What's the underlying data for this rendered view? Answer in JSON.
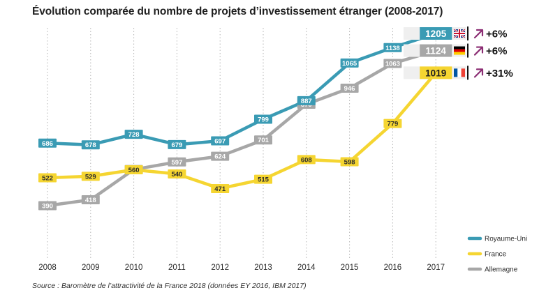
{
  "title": "Évolution comparée du nombre de projets d’investissement étranger (2008-2017)",
  "source": "Source : Baromètre de l’attractivité de la France 2018 (données EY 2016, IBM 2017)",
  "colors": {
    "royaume_uni": "#3a9bb4",
    "france": "#f5d531",
    "allemagne": "#a7a7a7",
    "arrow": "#8b2d73",
    "grid": "#b5b5b5"
  },
  "chart_data": {
    "type": "line",
    "title": "Évolution comparée du nombre de projets d’investissement étranger (2008-2017)",
    "x": [
      "2008",
      "2009",
      "2010",
      "2011",
      "2012",
      "2013",
      "2014",
      "2015",
      "2016",
      "2017"
    ],
    "series": [
      {
        "name": "Royaume-Uni",
        "color": "#3a9bb4",
        "values": [
          686,
          678,
          728,
          679,
          697,
          799,
          887,
          1065,
          1138,
          1205
        ],
        "change": "+6%",
        "flag": "uk-flag-icon"
      },
      {
        "name": "France",
        "color": "#f5d531",
        "values": [
          522,
          529,
          560,
          540,
          471,
          515,
          608,
          598,
          779,
          1019
        ],
        "change": "+31%",
        "flag": "france-flag-icon"
      },
      {
        "name": "Allemagne",
        "color": "#a7a7a7",
        "values": [
          390,
          418,
          561,
          597,
          624,
          701,
          870,
          946,
          1063,
          1124
        ],
        "change": "+6%",
        "flag": "germany-flag-icon"
      }
    ],
    "ylim": [
      300,
      1230
    ],
    "grid": "vertical dotted",
    "legend": "bottom-right",
    "change_arrow": "up-right-arrow-icon"
  }
}
